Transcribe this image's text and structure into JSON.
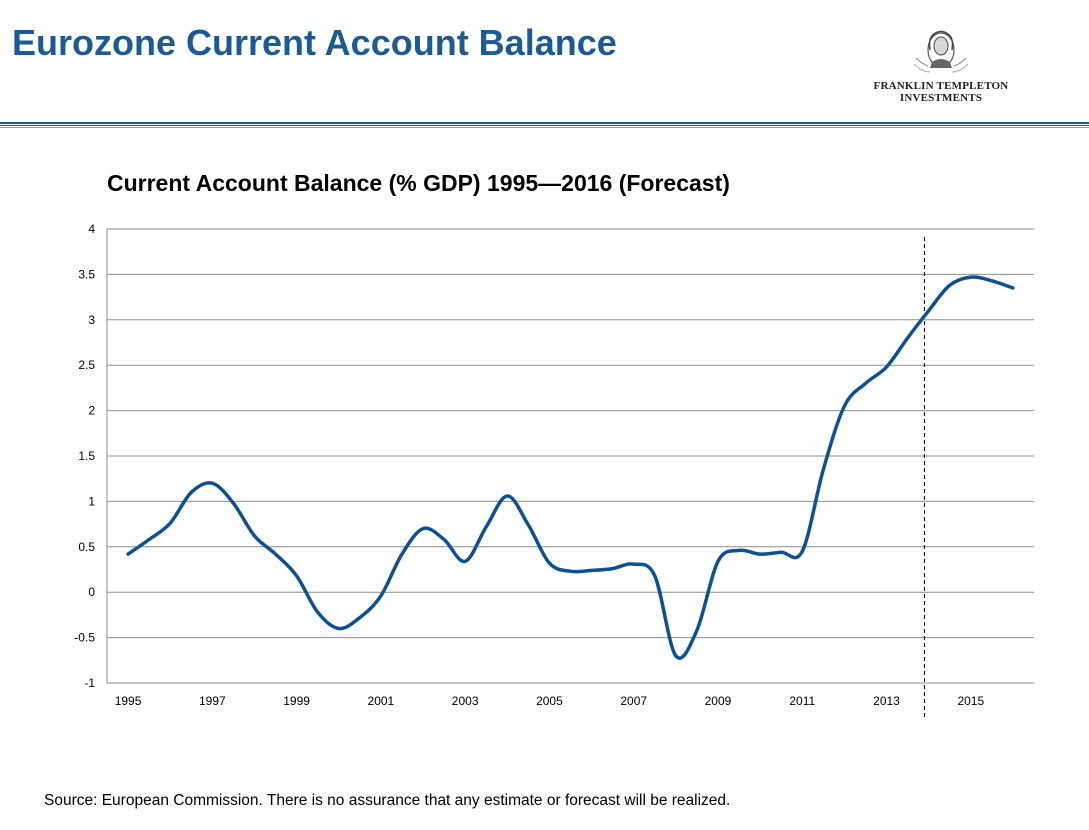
{
  "header": {
    "title": "Eurozone Current Account Balance"
  },
  "logo": {
    "line1": "FRANKLIN TEMPLETON",
    "line2": "INVESTMENTS",
    "icon": "benjamin-franklin-portrait-icon"
  },
  "footer": {
    "source": "Source: European Commission. There is no assurance that any estimate or forecast will be realized."
  },
  "colors": {
    "title": "#1c5a96",
    "line": "#0e5192",
    "grid": "#8c8c8c"
  },
  "chart_data": {
    "type": "line",
    "title": "Current Account Balance (% GDP) 1995—2016 (Forecast)",
    "xlabel": "",
    "ylabel": "",
    "ylim": [
      -1,
      4
    ],
    "yticks": [
      "4",
      "3.5",
      "3",
      "2.5",
      "2",
      "1.5",
      "1",
      "0.5",
      "0",
      "-0.5",
      "-1"
    ],
    "xticks": [
      "1995",
      "1997",
      "1999",
      "2001",
      "2003",
      "2005",
      "2007",
      "2009",
      "2011",
      "2013",
      "2015"
    ],
    "grid": true,
    "forecast_divider_year": 2013.9,
    "series": [
      {
        "x": [
          1995,
          1995.5,
          1996,
          1996.5,
          1997,
          1997.5,
          1998,
          1998.5,
          1999,
          1999.5,
          2000,
          2000.5,
          2001,
          2001.5,
          2002,
          2002.5,
          2003,
          2003.5,
          2004,
          2004.5,
          2005,
          2005.5,
          2006,
          2006.5,
          2007,
          2007.5,
          2008,
          2008.5,
          2009,
          2009.5,
          2010,
          2010.5,
          2011,
          2011.5,
          2012,
          2012.5,
          2013,
          2013.5,
          2014,
          2014.5,
          2015,
          2015.5,
          2016
        ],
        "y": [
          0.42,
          0.58,
          0.76,
          1.1,
          1.2,
          0.98,
          0.62,
          0.42,
          0.18,
          -0.22,
          -0.4,
          -0.28,
          -0.04,
          0.42,
          0.7,
          0.58,
          0.34,
          0.72,
          1.06,
          0.74,
          0.32,
          0.23,
          0.24,
          0.26,
          0.31,
          0.18,
          -0.7,
          -0.42,
          0.34,
          0.46,
          0.42,
          0.44,
          0.45,
          1.35,
          2.05,
          2.3,
          2.48,
          2.8,
          3.1,
          3.38,
          3.47,
          3.43,
          3.35
        ]
      }
    ]
  }
}
